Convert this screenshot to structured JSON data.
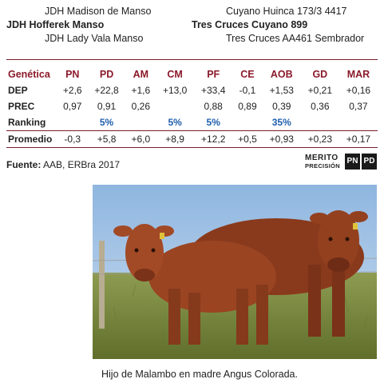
{
  "pedigree": {
    "left": [
      "JDH Madison de Manso",
      "JDH Hofferek Manso",
      "JDH Lady Vala Manso"
    ],
    "right": [
      "Cuyano Huinca 173/3 4417",
      "Tres Cruces Cuyano 899",
      "Tres Cruces AA461 Sembrador"
    ]
  },
  "table": {
    "header_label": "Genética",
    "columns": [
      "PN",
      "PD",
      "AM",
      "CM",
      "PF",
      "CE",
      "AOB",
      "GD",
      "MAR"
    ],
    "rows": [
      {
        "label": "DEP",
        "values": [
          "+2,6",
          "+22,8",
          "+1,6",
          "+13,0",
          "+33,4",
          "-0,1",
          "+1,53",
          "+0,21",
          "+0,16"
        ]
      },
      {
        "label": "PREC",
        "values": [
          "0,97",
          "0,91",
          "0,26",
          "",
          "0,88",
          "0,89",
          "0,39",
          "0,36",
          "0,37"
        ]
      },
      {
        "label": "Ranking",
        "values": [
          "",
          "5%",
          "",
          "5%",
          "5%",
          "",
          "35%",
          "",
          ""
        ]
      },
      {
        "label": "Promedio",
        "values": [
          "-0,3",
          "+5,8",
          "+6,0",
          "+8,9",
          "+12,2",
          "+0,5",
          "+0,93",
          "+0,23",
          "+0,17"
        ]
      }
    ]
  },
  "source": {
    "label": "Fuente:",
    "text": "AAB, ERBra 2017"
  },
  "logo": {
    "line1": "MERITO",
    "line2": "PRECISIÓN",
    "box1": "PN",
    "box2": "PD"
  },
  "photo": {
    "subject": "two red angus cattle standing in a pasture"
  },
  "caption": "Hijo de Malambo en madre Angus Colorada.",
  "colors": {
    "accent": "#8b1a2b",
    "ranking": "#1f5fae",
    "sky": "#a9c8e8",
    "grass": "#7d8f3c",
    "cattle": "#8a3a1c"
  }
}
